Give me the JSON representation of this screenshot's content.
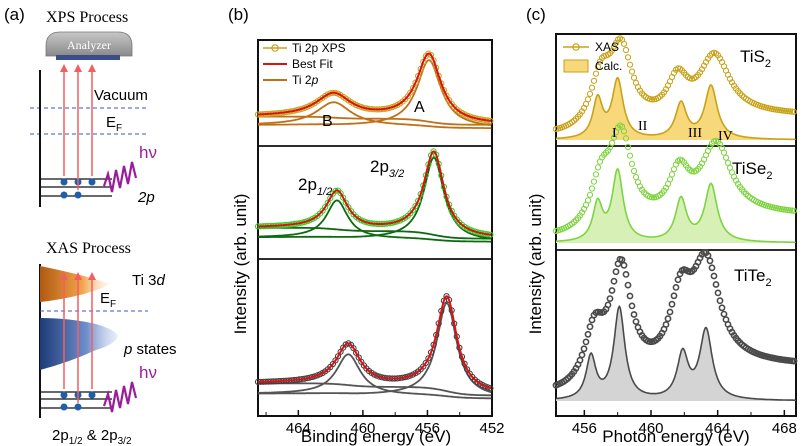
{
  "panel_labels": {
    "a": "(a)",
    "b": "(b)",
    "c": "(c)"
  },
  "panel_a": {
    "xps_title": "XPS Process",
    "analyzer_label": "Analyzer",
    "vacuum_label": "Vacuum",
    "fermi_label_main": "E",
    "fermi_label_sub": "F",
    "photon_label": "hν",
    "core_label": "2p",
    "xas_title": "XAS Process",
    "ti3d_main": "Ti 3",
    "ti3d_ital": "d",
    "pstates_ital": "p",
    "pstates_rest": " states",
    "core2_part1": "2p",
    "core2_sub1": "1/2",
    "core2_amp": " & 2p",
    "core2_sub2": "3/2"
  },
  "colors": {
    "xps_data": "#c8a218",
    "fit": "#dd1111",
    "comp_orange": "#c07018",
    "green_data": "#33cc22",
    "green_fit": "#0d6a10",
    "gray_data": "#3d3d3d",
    "gray_fit": "#555555",
    "xas_gold": "#c8a218",
    "xas_gold_fill": "#f7d87a",
    "xas_green": "#7ed440",
    "xas_green_fill": "#d7f0b6",
    "xas_gray": "#4a4a4a",
    "xas_gray_fill": "#d4d4d4",
    "arrow_red": "#f06060",
    "wave_purple": "#9b1d9b",
    "electron_blue": "#1f5fa8",
    "level_blue_dash": "#3355cc"
  },
  "chart_data": [
    {
      "id": "b",
      "type": "line",
      "title": "",
      "xlabel": "Binding energy (eV)",
      "ylabel": "Intensity (arb. unit)",
      "x_reversed": true,
      "xlim": [
        466.5,
        452
      ],
      "xticks": [
        464,
        460,
        456,
        452
      ],
      "xtick_labels": [
        "464",
        "460",
        "456",
        "452"
      ],
      "legend": {
        "placement": "top-left",
        "entries": [
          "Ti 2p XPS",
          "Best Fit",
          "Ti 2p"
        ]
      },
      "subplots": [
        {
          "name": "TiS2",
          "series": [
            {
              "name": "Ti 2p XPS",
              "style": "circles",
              "peaks": [
                [
                  461.8,
                  0.3,
                  1.3
                ],
                [
                  455.9,
                  0.86,
                  0.9
                ]
              ],
              "background": 0.08
            },
            {
              "name": "Best Fit",
              "style": "line",
              "peaks": [
                [
                  461.8,
                  0.3,
                  1.3
                ],
                [
                  455.9,
                  0.86,
                  0.9
                ]
              ],
              "background": 0.08
            },
            {
              "name": "Ti 2p",
              "style": "component",
              "peaks": [
                [
                  461.8,
                  0.3,
                  1.3
                ]
              ],
              "background": 0.0
            },
            {
              "name": "Ti 2p",
              "style": "component",
              "peaks": [
                [
                  455.9,
                  0.86,
                  0.9
                ]
              ],
              "background": 0.0
            }
          ],
          "annotations": [
            "B",
            "A"
          ]
        },
        {
          "name": "TiSe2",
          "series": [
            {
              "name": "Ti 2p XPS",
              "style": "circles",
              "peaks": [
                [
                  461.6,
                  0.42,
                  0.8
                ],
                [
                  455.6,
                  0.92,
                  0.75
                ]
              ],
              "background": 0.06
            },
            {
              "name": "Best Fit",
              "style": "line",
              "peaks": [
                [
                  461.6,
                  0.42,
                  0.8
                ],
                [
                  455.6,
                  0.92,
                  0.75
                ]
              ],
              "background": 0.06
            },
            {
              "name": "Ti 2p",
              "style": "component",
              "peaks": [
                [
                  461.6,
                  0.42,
                  0.8
                ]
              ],
              "background": 0.0
            },
            {
              "name": "Ti 2p",
              "style": "component",
              "peaks": [
                [
                  455.6,
                  0.92,
                  0.75
                ]
              ],
              "background": 0.0
            }
          ],
          "annotations": [
            "2p",
            "1/2",
            "2p",
            "3/2"
          ]
        },
        {
          "name": "TiTe2",
          "series": [
            {
              "name": "Ti 2p XPS",
              "style": "circles",
              "peaks": [
                [
                  460.9,
                  0.36,
                  0.9
                ],
                [
                  454.8,
                  0.84,
                  0.75
                ]
              ],
              "background": 0.05
            },
            {
              "name": "Best Fit",
              "style": "line",
              "peaks": [
                [
                  460.9,
                  0.36,
                  0.9
                ],
                [
                  454.8,
                  0.84,
                  0.75
                ]
              ],
              "background": 0.05
            },
            {
              "name": "Ti 2p",
              "style": "component",
              "peaks": [
                [
                  460.9,
                  0.36,
                  0.9
                ]
              ],
              "background": 0.0
            },
            {
              "name": "Ti 2p",
              "style": "component",
              "peaks": [
                [
                  454.8,
                  0.84,
                  0.75
                ]
              ],
              "background": 0.0
            }
          ],
          "annotations": []
        }
      ]
    },
    {
      "id": "c",
      "type": "area",
      "title": "",
      "xlabel": "Photon energy (eV)",
      "ylabel": "Intensity (arb. unit)",
      "x_reversed": false,
      "xlim": [
        454.3,
        468.7
      ],
      "xticks": [
        456,
        460,
        464,
        468
      ],
      "xtick_labels": [
        "456",
        "460",
        "464",
        "468"
      ],
      "legend": {
        "placement": "top-left",
        "entries": [
          "XAS",
          "Calc."
        ]
      },
      "subplots": [
        {
          "name": "TiS2",
          "label_main": "TiS",
          "label_sub": "2",
          "xas_peaks": [
            [
              457.0,
              0.55,
              0.7
            ],
            [
              458.2,
              0.92,
              0.8
            ],
            [
              461.6,
              0.5,
              0.75
            ],
            [
              463.8,
              0.78,
              1.1
            ]
          ],
          "calc_peaks": [
            [
              456.8,
              0.5,
              0.35
            ],
            [
              458.0,
              0.75,
              0.4
            ],
            [
              461.8,
              0.45,
              0.4
            ],
            [
              463.6,
              0.68,
              0.45
            ]
          ],
          "background": 0.05,
          "peak_labels": [
            "I",
            "II",
            "III",
            "IV"
          ]
        },
        {
          "name": "TiSe2",
          "label_main": "TiSe",
          "label_sub": "2",
          "xas_peaks": [
            [
              457.0,
              0.45,
              0.7
            ],
            [
              458.2,
              0.98,
              0.8
            ],
            [
              461.7,
              0.52,
              0.75
            ],
            [
              463.9,
              0.82,
              1.1
            ]
          ],
          "calc_peaks": [
            [
              456.8,
              0.42,
              0.35
            ],
            [
              458.0,
              0.8,
              0.4
            ],
            [
              461.8,
              0.48,
              0.4
            ],
            [
              463.6,
              0.65,
              0.45
            ]
          ],
          "background": 0.05,
          "peak_labels": []
        },
        {
          "name": "TiTe2",
          "label_main": "TiTe",
          "label_sub": "2",
          "xas_peaks": [
            [
              456.6,
              0.42,
              0.7
            ],
            [
              458.2,
              0.95,
              0.75
            ],
            [
              461.8,
              0.62,
              0.8
            ],
            [
              463.3,
              0.92,
              1.0
            ]
          ],
          "calc_peaks": [
            [
              456.4,
              0.38,
              0.35
            ],
            [
              458.1,
              0.82,
              0.4
            ],
            [
              461.9,
              0.4,
              0.4
            ],
            [
              463.3,
              0.62,
              0.45
            ]
          ],
          "background": 0.05,
          "peak_labels": []
        }
      ]
    }
  ]
}
